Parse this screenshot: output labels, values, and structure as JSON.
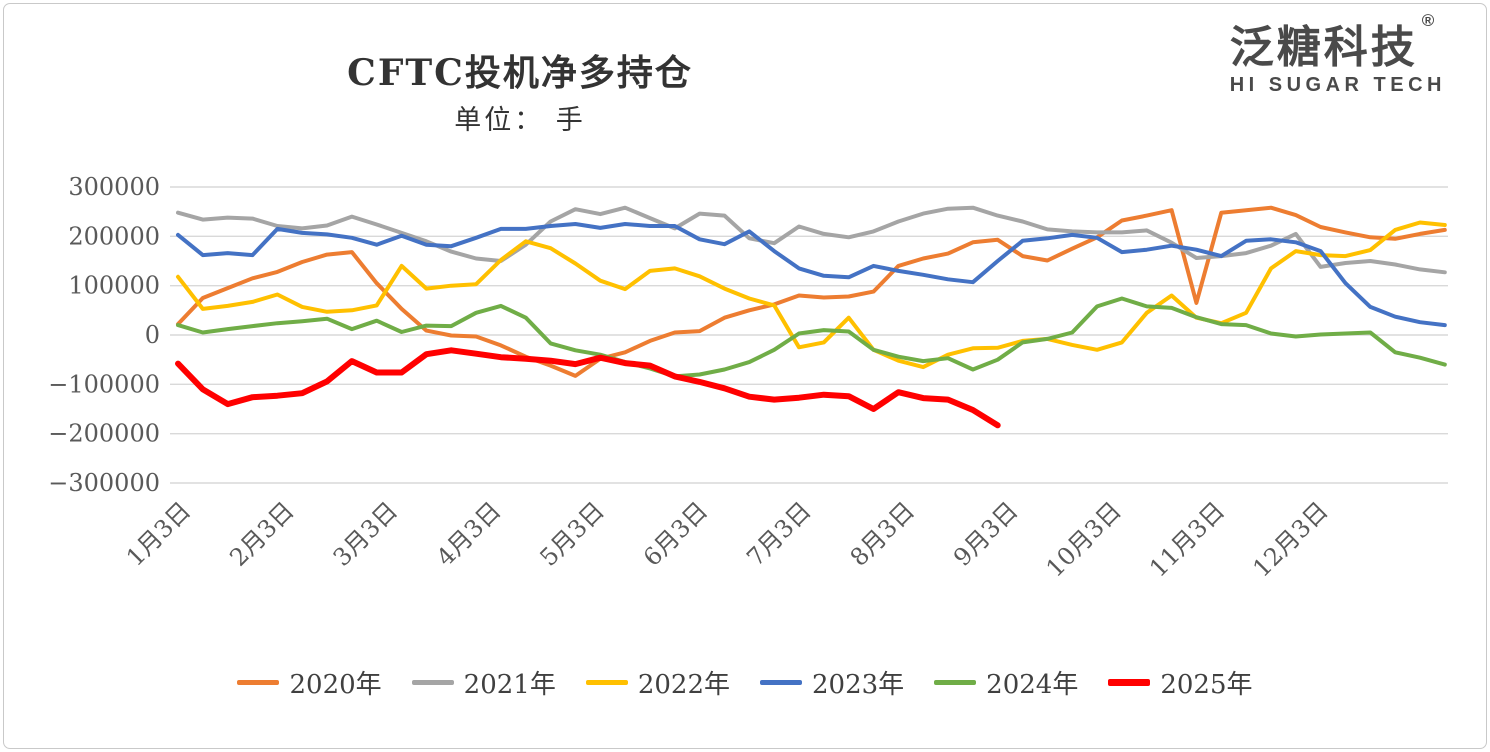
{
  "header": {
    "title": "CFTC投机净多持仓",
    "subtitle": "单位： 手"
  },
  "logo": {
    "cn": "泛糖科技",
    "reg": "®",
    "en": "HI SUGAR TECH"
  },
  "chart_data": {
    "type": "line",
    "title": "CFTC投机净多持仓",
    "subtitle_unit": "单位： 手",
    "ylabel": "",
    "xlabel": "",
    "ylim": [
      -300000,
      300000
    ],
    "grid": "horizontal",
    "grid_color": "#d9d9d9",
    "legend_position": "bottom",
    "x_is_weekly": true,
    "points_per_series": 52,
    "y_ticks": [
      300000,
      200000,
      100000,
      0,
      -100000,
      -200000,
      -300000
    ],
    "y_tick_labels": [
      "300000",
      "200000",
      "100000",
      "0",
      "−100000",
      "−200000",
      "−300000"
    ],
    "x_tick_labels": [
      "1月3日",
      "2月3日",
      "3月3日",
      "4月3日",
      "5月3日",
      "6月3日",
      "7月3日",
      "8月3日",
      "9月3日",
      "10月3日",
      "11月3日",
      "12月3日"
    ],
    "axis_text_color": "#595959",
    "series": [
      {
        "name": "2020年",
        "color": "#ED7D31",
        "width": 4,
        "values": [
          22000,
          75000,
          95000,
          115000,
          128000,
          148000,
          163000,
          168000,
          105000,
          53000,
          9000,
          -1000,
          -3000,
          -21000,
          -44000,
          -62000,
          -83000,
          -48000,
          -35000,
          -12000,
          5000,
          8000,
          35000,
          50000,
          62000,
          80000,
          76000,
          78000,
          88000,
          140000,
          155000,
          165000,
          188000,
          193000,
          160000,
          151000,
          175000,
          198000,
          232000,
          242000,
          253000,
          65000,
          248000,
          253000,
          258000,
          243000,
          219000,
          208000,
          198000,
          195000,
          205000,
          213000
        ]
      },
      {
        "name": "2021年",
        "color": "#A5A5A5",
        "width": 4,
        "values": [
          248000,
          234000,
          238000,
          236000,
          221000,
          216000,
          222000,
          240000,
          224000,
          207000,
          190000,
          169000,
          155000,
          150000,
          183000,
          230000,
          255000,
          245000,
          258000,
          237000,
          216000,
          246000,
          242000,
          196000,
          186000,
          220000,
          205000,
          198000,
          210000,
          230000,
          246000,
          256000,
          258000,
          242000,
          230000,
          214000,
          210000,
          208000,
          208000,
          212000,
          187000,
          156000,
          160000,
          166000,
          181000,
          205000,
          138000,
          146000,
          150000,
          143000,
          133000,
          127000
        ]
      },
      {
        "name": "2022年",
        "color": "#FFC000",
        "width": 4,
        "values": [
          118000,
          53000,
          59000,
          67000,
          82000,
          57000,
          47000,
          50000,
          60000,
          140000,
          94000,
          100000,
          103000,
          152000,
          190000,
          176000,
          145000,
          110000,
          93000,
          130000,
          135000,
          119000,
          94000,
          74000,
          60000,
          -25000,
          -15000,
          35000,
          -30000,
          -52000,
          -65000,
          -40000,
          -27000,
          -26000,
          -12000,
          -8000,
          -20000,
          -30000,
          -15000,
          45000,
          80000,
          35000,
          24000,
          45000,
          135000,
          170000,
          162000,
          160000,
          172000,
          213000,
          228000,
          223000
        ]
      },
      {
        "name": "2023年",
        "color": "#4472C4",
        "width": 4,
        "values": [
          203000,
          162000,
          166000,
          162000,
          215000,
          207000,
          204000,
          197000,
          183000,
          201000,
          183000,
          180000,
          197000,
          215000,
          215000,
          221000,
          225000,
          217000,
          225000,
          221000,
          221000,
          194000,
          184000,
          210000,
          170000,
          135000,
          120000,
          117000,
          140000,
          130000,
          122000,
          113000,
          107000,
          150000,
          191000,
          196000,
          203000,
          197000,
          168000,
          173000,
          181000,
          173000,
          160000,
          191000,
          194000,
          188000,
          170000,
          105000,
          57000,
          37000,
          26000,
          20000
        ]
      },
      {
        "name": "2024年",
        "color": "#70AD47",
        "width": 4,
        "values": [
          20000,
          5000,
          12000,
          18000,
          24000,
          28000,
          33000,
          12000,
          29000,
          6000,
          19000,
          18000,
          45000,
          59000,
          35000,
          -17000,
          -31000,
          -40000,
          -55000,
          -68000,
          -84000,
          -80000,
          -70000,
          -55000,
          -30000,
          3000,
          10000,
          7000,
          -30000,
          -44000,
          -53000,
          -47000,
          -70000,
          -50000,
          -15000,
          -8000,
          5000,
          58000,
          74000,
          58000,
          55000,
          36000,
          22000,
          20000,
          3000,
          -3000,
          1000,
          3000,
          5000,
          -35000,
          -46000,
          -60000
        ]
      },
      {
        "name": "2025年",
        "color": "#FF0000",
        "width": 6,
        "values": [
          -58000,
          -110000,
          -140000,
          -126000,
          -123000,
          -118000,
          -94000,
          -53000,
          -76000,
          -76000,
          -39000,
          -31000,
          -38000,
          -45000,
          -48000,
          -52000,
          -59000,
          -46000,
          -57000,
          -62000,
          -84000,
          -95000,
          -108000,
          -125000,
          -131000,
          -127000,
          -121000,
          -124000,
          -150000,
          -116000,
          -128000,
          -131000,
          -152000,
          -183000
        ]
      }
    ]
  }
}
